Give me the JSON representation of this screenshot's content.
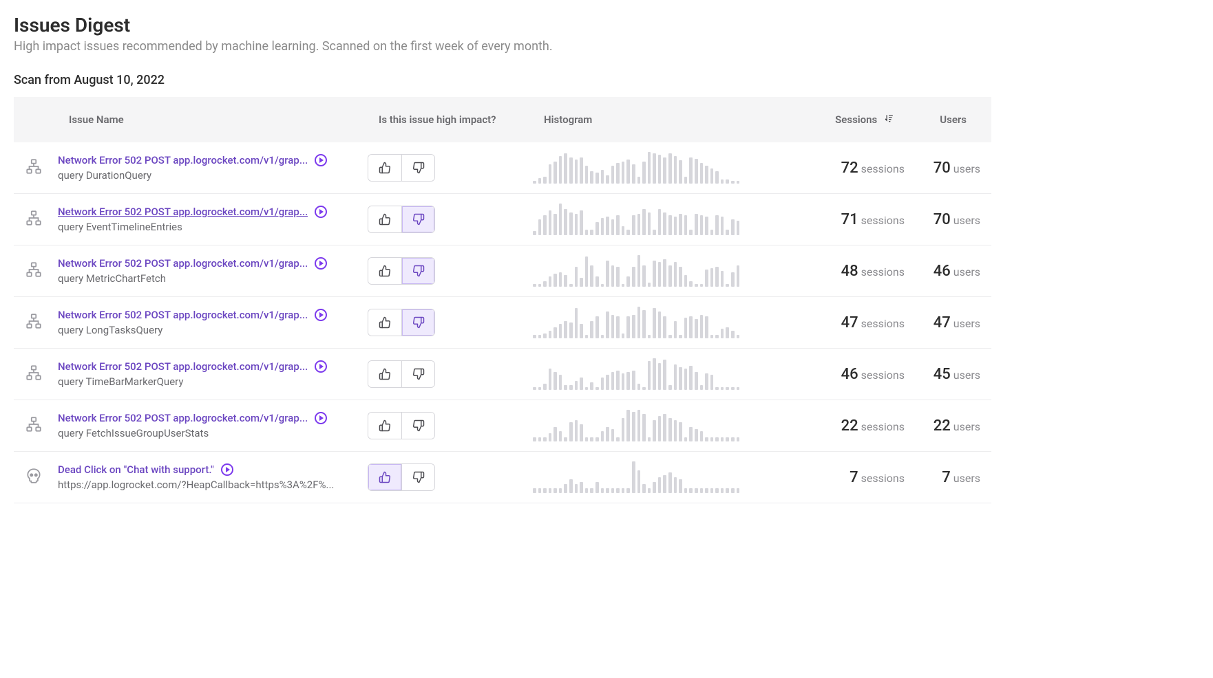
{
  "header": {
    "title": "Issues Digest",
    "subtitle": "High impact issues recommended by machine learning. Scanned on the first week of every month.",
    "scan_label": "Scan from August 10, 2022"
  },
  "columns": {
    "name": "Issue Name",
    "impact": "Is this issue high impact?",
    "histogram": "Histogram",
    "sessions": "Sessions",
    "users": "Users"
  },
  "labels": {
    "sessions_unit": "sessions",
    "users_unit": "users"
  },
  "style": {
    "link_color": "#6b46c1",
    "bar_color": "#d6d6db",
    "header_bg": "#f5f5f6",
    "border_color": "#ececee",
    "selected_bg": "#efeafd",
    "selected_border": "#c8b8f3",
    "text_muted": "#8a8a8e"
  },
  "issues": [
    {
      "icon": "network",
      "title": "Network Error 502 POST app.logrocket.com/v1/grap...",
      "underlined": false,
      "sub": "query DurationQuery",
      "up_selected": false,
      "down_selected": false,
      "sessions": 72,
      "users": 70,
      "hist": [
        4,
        8,
        10,
        28,
        32,
        40,
        44,
        38,
        35,
        38,
        26,
        18,
        16,
        20,
        12,
        26,
        30,
        32,
        35,
        28,
        10,
        32,
        46,
        44,
        42,
        38,
        44,
        40,
        34,
        10,
        38,
        36,
        30,
        26,
        22,
        18,
        6,
        6,
        4,
        4
      ]
    },
    {
      "icon": "network",
      "title": "Network Error 502 POST app.logrocket.com/v1/grap...",
      "underlined": true,
      "sub": "query EventTimelineEntries",
      "up_selected": false,
      "down_selected": true,
      "sessions": 71,
      "users": 70,
      "hist": [
        6,
        22,
        28,
        34,
        30,
        44,
        36,
        32,
        30,
        34,
        8,
        8,
        18,
        24,
        26,
        22,
        28,
        12,
        8,
        28,
        30,
        36,
        32,
        8,
        36,
        32,
        28,
        26,
        30,
        28,
        8,
        30,
        28,
        26,
        8,
        28,
        26,
        8,
        22,
        20
      ]
    },
    {
      "icon": "network",
      "title": "Network Error 502 POST app.logrocket.com/v1/grap...",
      "underlined": false,
      "sub": "query MetricChartFetch",
      "up_selected": false,
      "down_selected": true,
      "sessions": 48,
      "users": 46,
      "hist": [
        4,
        4,
        8,
        14,
        18,
        20,
        16,
        4,
        28,
        12,
        42,
        30,
        14,
        4,
        36,
        30,
        28,
        4,
        14,
        28,
        44,
        30,
        6,
        36,
        34,
        38,
        30,
        34,
        28,
        16,
        8,
        4,
        4,
        24,
        26,
        28,
        22,
        4,
        20,
        30
      ]
    },
    {
      "icon": "network",
      "title": "Network Error 502 POST app.logrocket.com/v1/grap...",
      "underlined": false,
      "sub": "query LongTasksQuery",
      "up_selected": false,
      "down_selected": true,
      "sessions": 47,
      "users": 47,
      "hist": [
        4,
        4,
        6,
        10,
        14,
        18,
        22,
        20,
        38,
        18,
        4,
        22,
        28,
        4,
        34,
        30,
        28,
        6,
        28,
        30,
        40,
        36,
        4,
        38,
        34,
        28,
        4,
        22,
        4,
        26,
        28,
        24,
        30,
        28,
        4,
        4,
        12,
        14,
        10,
        4
      ]
    },
    {
      "icon": "network",
      "title": "Network Error 502 POST app.logrocket.com/v1/grap...",
      "underlined": false,
      "sub": "query TimeBarMarkerQuery",
      "up_selected": false,
      "down_selected": false,
      "sessions": 46,
      "users": 45,
      "hist": [
        4,
        4,
        8,
        28,
        24,
        20,
        6,
        6,
        12,
        16,
        4,
        10,
        4,
        16,
        20,
        24,
        26,
        22,
        24,
        26,
        8,
        4,
        38,
        42,
        36,
        40,
        6,
        34,
        30,
        28,
        32,
        24,
        6,
        22,
        20,
        4,
        4,
        4,
        4,
        4
      ]
    },
    {
      "icon": "network",
      "title": "Network Error 502 POST app.logrocket.com/v1/grap...",
      "underlined": false,
      "sub": "query FetchIssueGroupUserStats",
      "up_selected": false,
      "down_selected": false,
      "sessions": 22,
      "users": 22,
      "hist": [
        4,
        4,
        4,
        8,
        14,
        10,
        4,
        18,
        20,
        16,
        4,
        4,
        4,
        10,
        14,
        12,
        4,
        22,
        30,
        28,
        30,
        26,
        4,
        20,
        24,
        26,
        22,
        20,
        18,
        4,
        14,
        12,
        10,
        4,
        4,
        4,
        4,
        4,
        4,
        4
      ]
    },
    {
      "icon": "skull",
      "title": "Dead Click on \"Chat with support.\"",
      "underlined": false,
      "sub": "https://app.logrocket.com/?HeapCallback=https%3A%2F%...",
      "up_selected": true,
      "down_selected": false,
      "sessions": 7,
      "users": 7,
      "hist": [
        4,
        4,
        4,
        4,
        4,
        4,
        8,
        12,
        8,
        10,
        4,
        4,
        10,
        4,
        4,
        4,
        4,
        4,
        4,
        28,
        20,
        8,
        4,
        10,
        14,
        16,
        18,
        14,
        12,
        4,
        4,
        4,
        4,
        4,
        4,
        4,
        4,
        4,
        4,
        4
      ]
    }
  ]
}
